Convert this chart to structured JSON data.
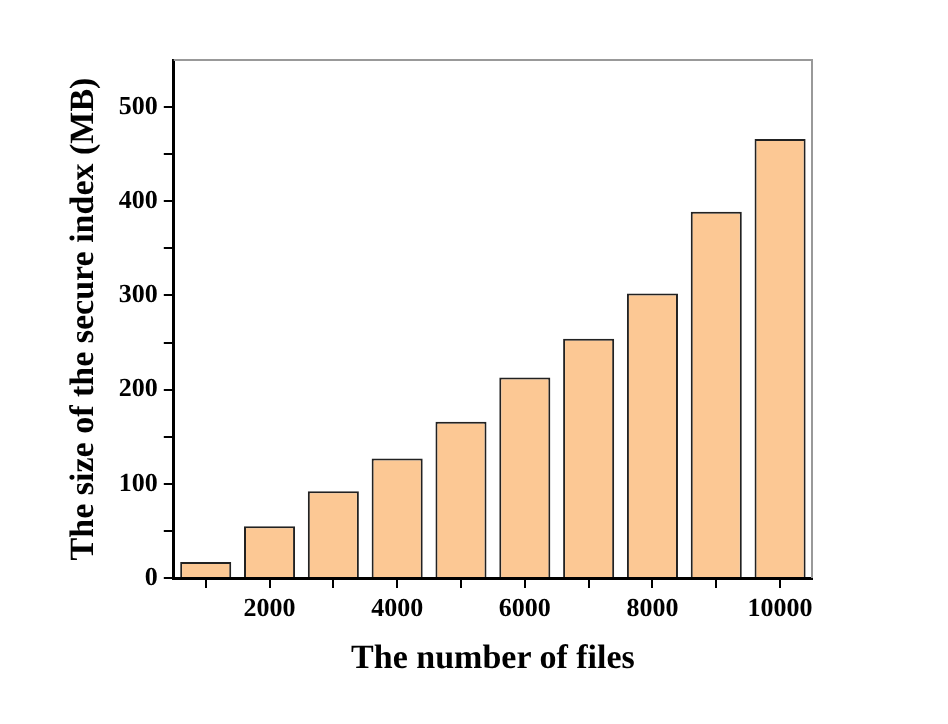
{
  "chart_data": {
    "type": "bar",
    "xlabel": "The number of files",
    "ylabel": "The size of the secure index (MB)",
    "x": [
      1000,
      2000,
      3000,
      4000,
      5000,
      6000,
      7000,
      8000,
      9000,
      10000
    ],
    "values": [
      17,
      55,
      92,
      127,
      166,
      213,
      254,
      302,
      389,
      466
    ],
    "color": "#fcc894",
    "xlim": [
      500,
      10500
    ],
    "xticks": [
      {
        "value": 1000,
        "label": null
      },
      2000,
      {
        "value": 3000,
        "label": null
      },
      4000,
      {
        "value": 5000,
        "label": null
      },
      6000,
      {
        "value": 7000,
        "label": null
      },
      8000,
      {
        "value": 9000,
        "label": null
      },
      10000
    ],
    "ylim": [
      0,
      550
    ],
    "yticks": [
      0,
      {
        "value": 50,
        "label": null
      },
      100,
      {
        "value": 150,
        "label": null
      },
      200,
      {
        "value": 250,
        "label": null
      },
      300,
      {
        "value": 350,
        "label": null
      },
      400,
      {
        "value": 450,
        "label": null
      },
      500
    ],
    "grid": false,
    "legend": false
  }
}
